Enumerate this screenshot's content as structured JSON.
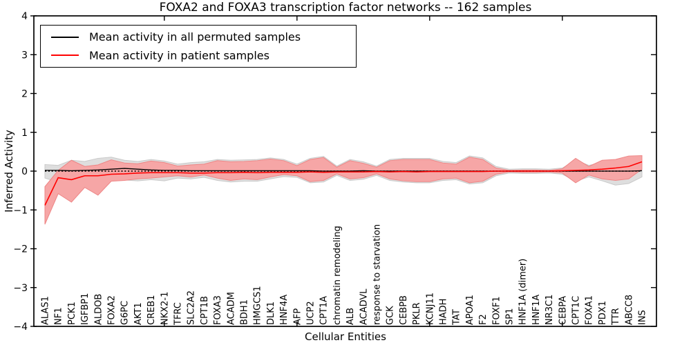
{
  "title": "FOXA2 and FOXA3 transcription factor networks -- 162 samples",
  "axes": {
    "ylabel": "Inferred Activity",
    "xlabel": "Cellular Entities",
    "ylim": [
      -4,
      4
    ],
    "ytick_labels": [
      "4",
      "3",
      "2",
      "1",
      "0",
      "−1",
      "−2",
      "−3",
      "−4"
    ],
    "ytick_values": [
      4,
      3,
      2,
      1,
      0,
      -1,
      -2,
      -3,
      -4
    ]
  },
  "legend": {
    "items": [
      {
        "label": "Mean activity in all permuted samples",
        "color": "#000000"
      },
      {
        "label": "Mean activity in patient samples",
        "color": "#ff0000"
      }
    ]
  },
  "colors": {
    "permuted_line": "#000000",
    "patient_line": "#ff0000",
    "permuted_band_fill": "#dedede",
    "permuted_band_edge": "#c9c9c9",
    "patient_band_fill": "#f6a6a6",
    "patient_band_edge": "#ee8585",
    "zero_line": "#000000",
    "frame": "#000000"
  },
  "chart_data": {
    "type": "line",
    "title": "FOXA2 and FOXA3 transcription factor networks -- 162 samples",
    "xlabel": "Cellular Entities",
    "ylabel": "Inferred Activity",
    "ylim": [
      -4,
      4
    ],
    "grid": false,
    "legend_position": "upper left",
    "zero_reference_line": true,
    "categories": [
      "ALAS1",
      "NF1",
      "PCK1",
      "IGFBP1",
      "ALDOB",
      "FOXA2",
      "G6PC",
      "AKT1",
      "CREB1",
      "NKX2-1",
      "TFRC",
      "SLC2A2",
      "CPT1B",
      "FOXA3",
      "ACADM",
      "BDH1",
      "HMGCS1",
      "DLK1",
      "HNF4A",
      "AFP",
      "UCP2",
      "CPT1A",
      "chromatin remodeling",
      "ALB",
      "ACADVL",
      "response to starvation",
      "GCK",
      "CEBPB",
      "PKLR",
      "KCNJ11",
      "HADH",
      "TAT",
      "APOA1",
      "F2",
      "FOXF1",
      "SP1",
      "HNF1A (dimer)",
      "HNF1A",
      "NR3C1",
      "CEBPA",
      "CPT1C",
      "FOXA1",
      "PDX1",
      "TTR",
      "ABCC8",
      "INS"
    ],
    "series": [
      {
        "name": "Mean activity in all permuted samples",
        "values": [
          0.02,
          0.02,
          0.01,
          0.02,
          0.03,
          0.05,
          0.07,
          0.05,
          0.03,
          0.02,
          0.02,
          0.01,
          0.01,
          0.01,
          0.01,
          0.01,
          0.01,
          0.01,
          0.01,
          0.01,
          0.01,
          0,
          0,
          0,
          0.01,
          0,
          0,
          0,
          0,
          0,
          0,
          0,
          0,
          0,
          0,
          0,
          0,
          0,
          0,
          0,
          0,
          0,
          0,
          0,
          0,
          0.01
        ],
        "band_lower": [
          -0.18,
          -0.28,
          -0.2,
          -0.35,
          -0.28,
          -0.2,
          -0.23,
          -0.25,
          -0.22,
          -0.25,
          -0.18,
          -0.2,
          -0.16,
          -0.24,
          -0.28,
          -0.26,
          -0.26,
          -0.2,
          -0.14,
          -0.16,
          -0.3,
          -0.28,
          -0.11,
          -0.24,
          -0.21,
          -0.11,
          -0.24,
          -0.28,
          -0.3,
          -0.3,
          -0.24,
          -0.22,
          -0.33,
          -0.3,
          -0.12,
          -0.05,
          -0.06,
          -0.06,
          -0.05,
          -0.08,
          -0.26,
          -0.15,
          -0.25,
          -0.36,
          -0.32,
          -0.15
        ],
        "band_upper": [
          0.17,
          0.15,
          0.28,
          0.25,
          0.33,
          0.36,
          0.28,
          0.25,
          0.3,
          0.26,
          0.18,
          0.22,
          0.24,
          0.3,
          0.28,
          0.29,
          0.3,
          0.34,
          0.3,
          0.18,
          0.33,
          0.38,
          0.13,
          0.3,
          0.24,
          0.13,
          0.3,
          0.33,
          0.33,
          0.33,
          0.25,
          0.22,
          0.39,
          0.34,
          0.12,
          0.05,
          0.06,
          0.06,
          0.05,
          0.08,
          0.28,
          0.15,
          0.22,
          0.24,
          0.25,
          0.09
        ]
      },
      {
        "name": "Mean activity in patient samples",
        "values": [
          -0.88,
          -0.17,
          -0.22,
          -0.12,
          -0.12,
          -0.08,
          -0.07,
          -0.05,
          -0.04,
          -0.04,
          -0.04,
          -0.05,
          -0.05,
          -0.04,
          -0.04,
          -0.03,
          -0.04,
          -0.03,
          -0.03,
          -0.03,
          -0.02,
          -0.03,
          -0.02,
          -0.02,
          -0.02,
          -0.01,
          -0.02,
          -0.01,
          -0.02,
          -0.01,
          -0.01,
          -0.01,
          -0.01,
          -0.01,
          0,
          0,
          0,
          0,
          0,
          0.01,
          0.02,
          0.03,
          0.05,
          0.08,
          0.12,
          0.24
        ],
        "band_lower": [
          -1.37,
          -0.58,
          -0.8,
          -0.42,
          -0.62,
          -0.26,
          -0.24,
          -0.2,
          -0.18,
          -0.15,
          -0.12,
          -0.15,
          -0.1,
          -0.18,
          -0.24,
          -0.2,
          -0.22,
          -0.15,
          -0.09,
          -0.12,
          -0.27,
          -0.24,
          -0.07,
          -0.2,
          -0.17,
          -0.07,
          -0.2,
          -0.25,
          -0.27,
          -0.27,
          -0.2,
          -0.18,
          -0.3,
          -0.26,
          -0.08,
          -0.02,
          -0.03,
          -0.03,
          -0.02,
          -0.05,
          -0.3,
          -0.1,
          -0.2,
          -0.24,
          -0.2,
          0.05
        ],
        "band_upper": [
          -0.4,
          0.02,
          0.28,
          0.12,
          0.16,
          0.29,
          0.21,
          0.19,
          0.26,
          0.22,
          0.13,
          0.16,
          0.18,
          0.27,
          0.24,
          0.25,
          0.27,
          0.31,
          0.27,
          0.14,
          0.3,
          0.35,
          0.1,
          0.27,
          0.2,
          0.1,
          0.27,
          0.3,
          0.3,
          0.3,
          0.21,
          0.18,
          0.36,
          0.3,
          0.08,
          0.02,
          0.03,
          0.03,
          0.02,
          0.06,
          0.33,
          0.12,
          0.28,
          0.3,
          0.39,
          0.4
        ]
      }
    ]
  }
}
